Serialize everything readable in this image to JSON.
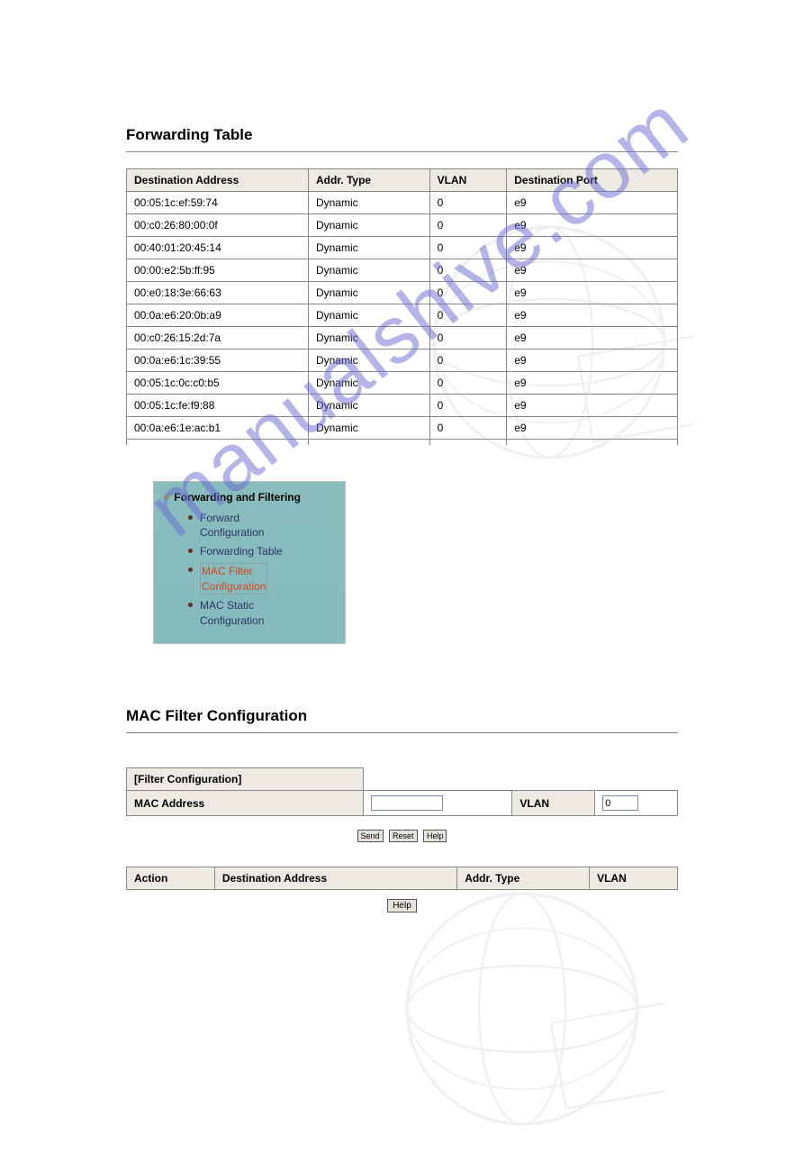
{
  "watermark_text": "manualshive.com",
  "forwarding_table": {
    "title": "Forwarding Table",
    "columns": [
      "Destination Address",
      "Addr. Type",
      "VLAN",
      "Destination Port"
    ],
    "rows": [
      [
        "00:05:1c:ef:59:74",
        "Dynamic",
        "0",
        "e9"
      ],
      [
        "00:c0:26:80:00:0f",
        "Dynamic",
        "0",
        "e9"
      ],
      [
        "00:40:01:20:45:14",
        "Dynamic",
        "0",
        "e9"
      ],
      [
        "00:00:e2:5b:ff:95",
        "Dynamic",
        "0",
        "e9"
      ],
      [
        "00:e0:18:3e:66:63",
        "Dynamic",
        "0",
        "e9"
      ],
      [
        "00:0a:e6:20:0b:a9",
        "Dynamic",
        "0",
        "e9"
      ],
      [
        "00:c0:26:15:2d:7a",
        "Dynamic",
        "0",
        "e9"
      ],
      [
        "00:0a:e6:1c:39:55",
        "Dynamic",
        "0",
        "e9"
      ],
      [
        "00:05:1c:0c:c0:b5",
        "Dynamic",
        "0",
        "e9"
      ],
      [
        "00:05:1c:fe:f9:88",
        "Dynamic",
        "0",
        "e9"
      ],
      [
        "00:0a:e6:1e:ac:b1",
        "Dynamic",
        "0",
        "e9"
      ]
    ]
  },
  "nav": {
    "title": "Forwarding and Filtering",
    "items": [
      {
        "label": "Forward Configuration",
        "active": false
      },
      {
        "label": "Forwarding Table",
        "active": false
      },
      {
        "label": "MAC Filter Configuration",
        "active": true
      },
      {
        "label": "MAC Static Configuration",
        "active": false
      }
    ]
  },
  "mac_filter": {
    "title": "MAC Filter Configuration",
    "section_label": "[Filter Configuration]",
    "mac_label": "MAC Address",
    "mac_value": "",
    "vlan_label": "VLAN",
    "vlan_value": "0",
    "buttons": {
      "send": "Send",
      "reset": "Reset",
      "help": "Help"
    },
    "result_columns": [
      "Action",
      "Destination Address",
      "Addr. Type",
      "VLAN"
    ],
    "help_btn": "Help"
  },
  "colors": {
    "header_bg": "#eceae3",
    "border": "#888888",
    "nav_bg": "#86bbbe",
    "nav_link": "#2a3560",
    "nav_active": "#d14a1a",
    "watermark": "#6b6cd4"
  }
}
